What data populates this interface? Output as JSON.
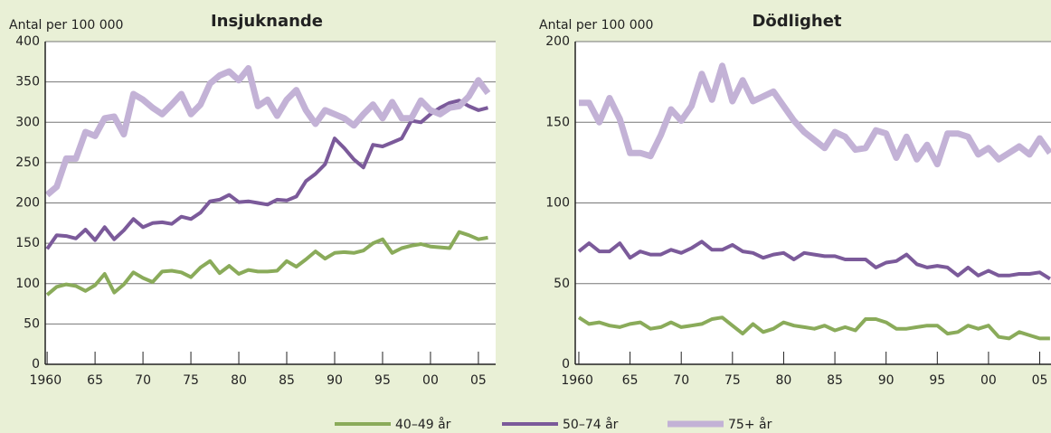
{
  "chart_data": [
    {
      "type": "line",
      "title": "Insjuknande",
      "y_label": "Antal per 100 000",
      "x": [
        1960,
        1961,
        1962,
        1963,
        1964,
        1965,
        1966,
        1967,
        1968,
        1969,
        1970,
        1971,
        1972,
        1973,
        1974,
        1975,
        1976,
        1977,
        1978,
        1979,
        1980,
        1981,
        1982,
        1983,
        1984,
        1985,
        1986,
        1987,
        1988,
        1989,
        1990,
        1991,
        1992,
        1993,
        1994,
        1995,
        1996,
        1997,
        1998,
        1999,
        2000,
        2001,
        2002,
        2003,
        2004,
        2005,
        2006
      ],
      "xlim": [
        1959.8,
        2006.8
      ],
      "xticks": [
        1960,
        {
          "value": 1965,
          "label": "65"
        },
        {
          "value": 1970,
          "label": "70"
        },
        {
          "value": 1975,
          "label": "75"
        },
        {
          "value": 1980,
          "label": "80"
        },
        {
          "value": 1985,
          "label": "85"
        },
        {
          "value": 1990,
          "label": "90"
        },
        {
          "value": 1995,
          "label": "95"
        },
        {
          "value": 2000,
          "label": "00"
        },
        {
          "value": 2005,
          "label": "05"
        }
      ],
      "ylim": [
        0,
        400
      ],
      "yticks": [
        0,
        50,
        100,
        150,
        200,
        250,
        300,
        350,
        400
      ],
      "grid": true,
      "series": [
        {
          "name": "40–49 år",
          "color": "#8aab5a",
          "values": [
            86,
            96,
            99,
            97,
            91,
            98,
            112,
            89,
            99,
            114,
            107,
            102,
            115,
            116,
            114,
            108,
            120,
            128,
            113,
            122,
            112,
            117,
            115,
            115,
            116,
            128,
            121,
            130,
            140,
            131,
            138,
            139,
            138,
            141,
            150,
            155,
            138,
            144,
            147,
            149,
            146,
            145,
            144,
            164,
            160,
            155,
            157
          ]
        },
        {
          "name": "50–74 år",
          "color": "#7b5a9a",
          "values": [
            143,
            160,
            159,
            156,
            167,
            154,
            170,
            155,
            166,
            180,
            170,
            175,
            176,
            174,
            183,
            180,
            188,
            202,
            204,
            210,
            201,
            202,
            200,
            198,
            204,
            203,
            208,
            227,
            236,
            248,
            280,
            268,
            254,
            244,
            272,
            270,
            275,
            280,
            302,
            300,
            310,
            318,
            324,
            327,
            320,
            315,
            318
          ]
        },
        {
          "name": "75+ år",
          "color": "#c3b2d6",
          "values": [
            210,
            220,
            255,
            255,
            288,
            283,
            305,
            307,
            285,
            335,
            328,
            318,
            310,
            322,
            335,
            310,
            322,
            348,
            358,
            363,
            352,
            367,
            320,
            328,
            308,
            328,
            340,
            315,
            298,
            315,
            310,
            305,
            296,
            310,
            322,
            305,
            325,
            305,
            305,
            327,
            315,
            310,
            318,
            320,
            332,
            352,
            336
          ]
        }
      ]
    },
    {
      "type": "line",
      "title": "Dödlighet",
      "y_label": "Antal per 100 000",
      "x": [
        1960,
        1961,
        1962,
        1963,
        1964,
        1965,
        1966,
        1967,
        1968,
        1969,
        1970,
        1971,
        1972,
        1973,
        1974,
        1975,
        1976,
        1977,
        1978,
        1979,
        1980,
        1981,
        1982,
        1983,
        1984,
        1985,
        1986,
        1987,
        1988,
        1989,
        1990,
        1991,
        1992,
        1993,
        1994,
        1995,
        1996,
        1997,
        1998,
        1999,
        2000,
        2001,
        2002,
        2003,
        2004,
        2005,
        2006
      ],
      "xlim": [
        1959.65,
        2006.1
      ],
      "xticks": [
        1960,
        {
          "value": 1965,
          "label": "65"
        },
        {
          "value": 1970,
          "label": "70"
        },
        {
          "value": 1975,
          "label": "75"
        },
        {
          "value": 1980,
          "label": "80"
        },
        {
          "value": 1985,
          "label": "85"
        },
        {
          "value": 1990,
          "label": "90"
        },
        {
          "value": 1995,
          "label": "95"
        },
        {
          "value": 2000,
          "label": "00"
        },
        {
          "value": 2005,
          "label": "05"
        }
      ],
      "ylim": [
        0,
        200
      ],
      "yticks": [
        0,
        50,
        100,
        150,
        200
      ],
      "grid": true,
      "series": [
        {
          "name": "40–49 år",
          "color": "#8aab5a",
          "values": [
            29,
            25,
            26,
            24,
            23,
            25,
            26,
            22,
            23,
            26,
            23,
            24,
            25,
            28,
            29,
            24,
            19,
            25,
            20,
            22,
            26,
            24,
            23,
            22,
            24,
            21,
            23,
            21,
            28,
            28,
            26,
            22,
            22,
            23,
            24,
            24,
            19,
            20,
            24,
            22,
            24,
            17,
            16,
            20,
            18,
            16,
            16
          ]
        },
        {
          "name": "50–74 år",
          "color": "#7b5a9a",
          "values": [
            70,
            75,
            70,
            70,
            75,
            66,
            70,
            68,
            68,
            71,
            69,
            72,
            76,
            71,
            71,
            74,
            70,
            69,
            66,
            68,
            69,
            65,
            69,
            68,
            67,
            67,
            65,
            65,
            65,
            60,
            63,
            64,
            68,
            62,
            60,
            61,
            60,
            55,
            60,
            55,
            58,
            55,
            55,
            56,
            56,
            57,
            53
          ]
        },
        {
          "name": "75+ år",
          "color": "#c3b2d6",
          "values": [
            162,
            162,
            150,
            165,
            152,
            131,
            131,
            129,
            142,
            158,
            151,
            160,
            180,
            164,
            185,
            163,
            176,
            163,
            166,
            169,
            160,
            151,
            144,
            139,
            134,
            144,
            141,
            133,
            134,
            145,
            143,
            128,
            141,
            127,
            136,
            124,
            143,
            143,
            141,
            130,
            134,
            127,
            131,
            135,
            130,
            140,
            131
          ]
        }
      ]
    }
  ]
}
